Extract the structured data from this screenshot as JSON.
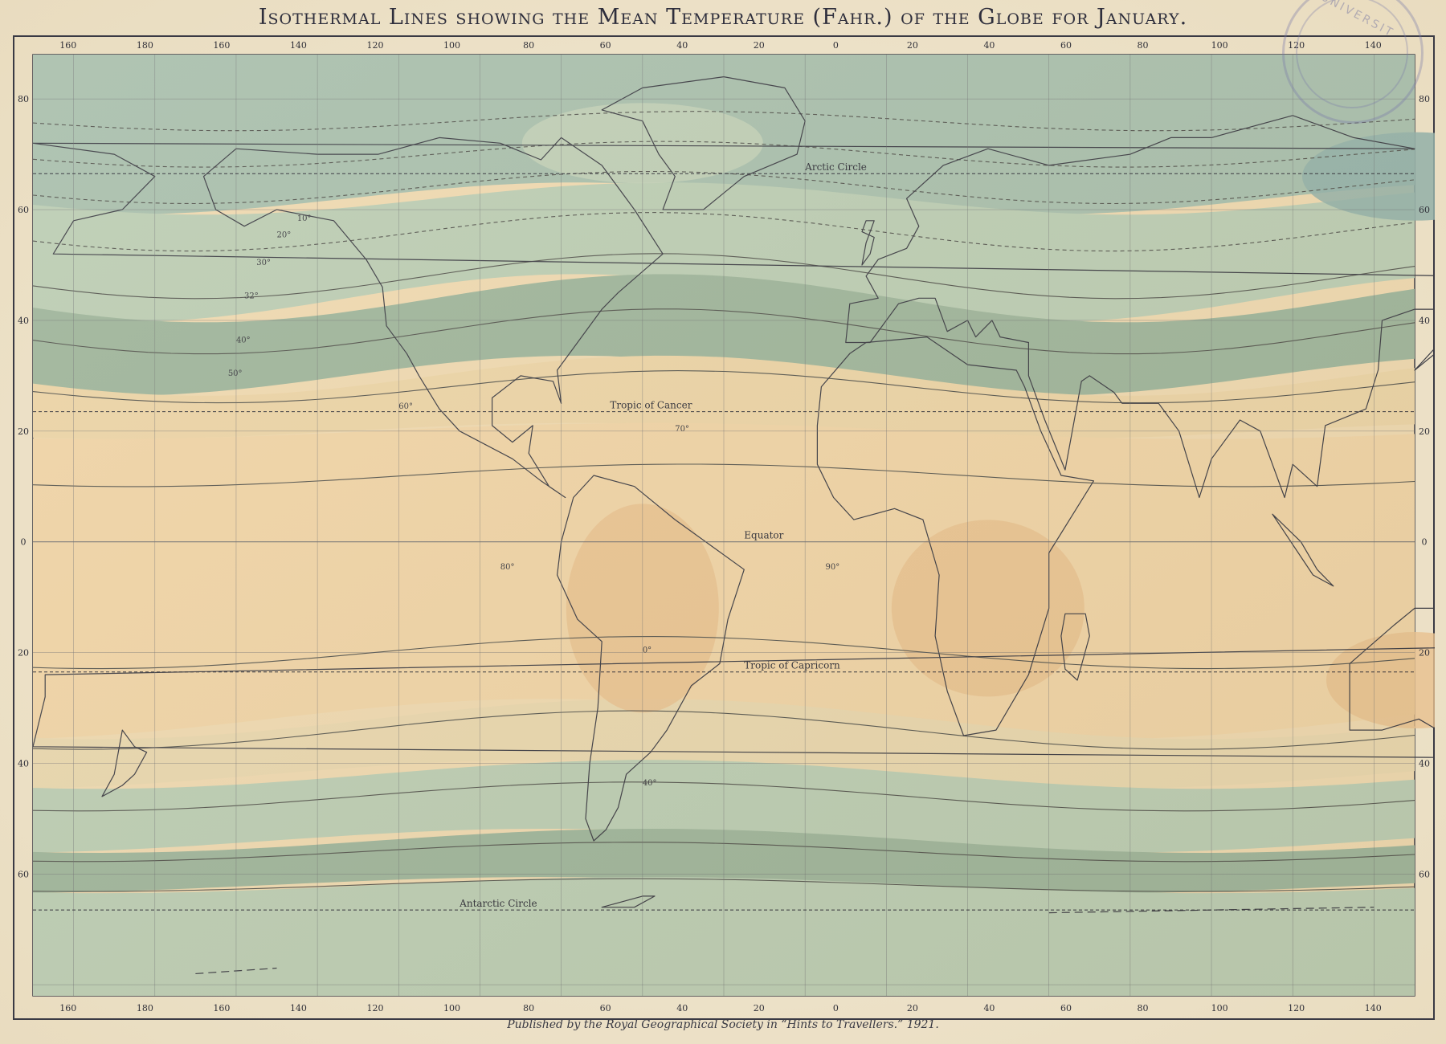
{
  "title": "Isothermal Lines showing the Mean Temperature (Fahr.) of the Globe for January.",
  "publisher": "Published by the Royal Geographical Society in “Hints to Travellers.” 1921.",
  "stamp_text": "UNIVERSIT",
  "longitude_labels_top": [
    "160",
    "180",
    "160",
    "140",
    "120",
    "100",
    "80",
    "60",
    "40",
    "20",
    "0",
    "20",
    "40",
    "60",
    "80",
    "100",
    "120",
    "140"
  ],
  "longitude_labels_bottom": [
    "160",
    "180",
    "160",
    "140",
    "120",
    "100",
    "80",
    "60",
    "40",
    "20",
    "0",
    "20",
    "40",
    "60",
    "80",
    "100",
    "120",
    "140"
  ],
  "latitude_labels": [
    {
      "lat": 80,
      "text": "80"
    },
    {
      "lat": 60,
      "text": "60"
    },
    {
      "lat": 40,
      "text": "40"
    },
    {
      "lat": 20,
      "text": "20"
    },
    {
      "lat": 0,
      "text": "0"
    },
    {
      "lat": -20,
      "text": "20"
    },
    {
      "lat": -40,
      "text": "40"
    },
    {
      "lat": -60,
      "text": "60"
    }
  ],
  "reference_lines": [
    {
      "name": "Arctic Circle",
      "label": "Arctic Circle",
      "lat": 66.5
    },
    {
      "name": "Tropic of Cancer",
      "label": "Tropic of Cancer",
      "lat": 23.5
    },
    {
      "name": "Equator",
      "label": "Equator",
      "lat": 0
    },
    {
      "name": "Tropic of Capricorn",
      "label": "Tropic of Capricorn",
      "lat": -23.5
    },
    {
      "name": "Antarctic Circle",
      "label": "Antarctic Circle",
      "lat": -66.5
    }
  ],
  "isotherm_labels": [
    "10°",
    "20°",
    "30°",
    "32°",
    "40°",
    "50°",
    "60°",
    "70°",
    "80°",
    "90°",
    "0°",
    "40°"
  ],
  "colors": {
    "ocean_cold": "#a9bfac",
    "ocean_cool": "#bccdb3",
    "mid_band": "#9fb59b",
    "warm": "#f0d4a6",
    "hot": "#e8c08e",
    "land_outline": "#3c3c44",
    "isotherm": "#55554f",
    "grid": "#6c6c70"
  }
}
